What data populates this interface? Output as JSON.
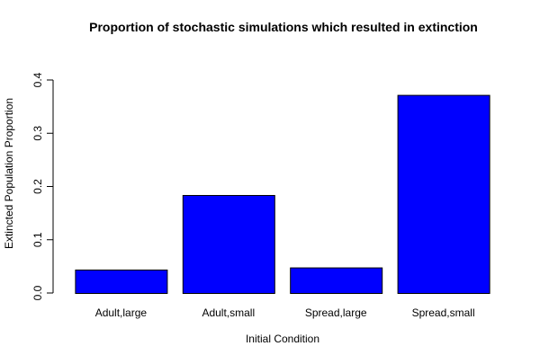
{
  "chart_data": {
    "type": "bar",
    "title": "Proportion of stochastic simulations which resulted in extinction",
    "xlabel": "Initial Condition",
    "ylabel": "Extincted Population Proportion",
    "categories": [
      "Adult,large",
      "Adult,small",
      "Spread,large",
      "Spread,small"
    ],
    "values": [
      0.044,
      0.184,
      0.048,
      0.372
    ],
    "ylim": [
      0,
      0.4
    ],
    "yticks": [
      0.0,
      0.1,
      0.2,
      0.3,
      0.4
    ],
    "ytick_labels": [
      "0.0",
      "0.1",
      "0.2",
      "0.3",
      "0.4"
    ],
    "bar_color": "#0000ff",
    "bar_border_color": "#000000",
    "grid": false,
    "legend": "none"
  }
}
